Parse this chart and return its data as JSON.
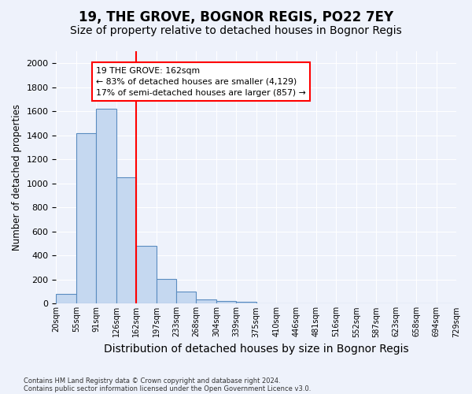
{
  "title": "19, THE GROVE, BOGNOR REGIS, PO22 7EY",
  "subtitle": "Size of property relative to detached houses in Bognor Regis",
  "xlabel": "Distribution of detached houses by size in Bognor Regis",
  "ylabel": "Number of detached properties",
  "footer_line1": "Contains HM Land Registry data © Crown copyright and database right 2024.",
  "footer_line2": "Contains public sector information licensed under the Open Government Licence v3.0.",
  "bin_labels": [
    "20sqm",
    "55sqm",
    "91sqm",
    "126sqm",
    "162sqm",
    "197sqm",
    "233sqm",
    "268sqm",
    "304sqm",
    "339sqm",
    "375sqm",
    "410sqm",
    "446sqm",
    "481sqm",
    "516sqm",
    "552sqm",
    "587sqm",
    "623sqm",
    "658sqm",
    "694sqm",
    "729sqm"
  ],
  "bar_values": [
    80,
    1420,
    1620,
    1050,
    480,
    205,
    100,
    35,
    22,
    18,
    5,
    0,
    0,
    0,
    0,
    0,
    0,
    0,
    0,
    0
  ],
  "bar_color": "#c5d8f0",
  "bar_edge_color": "#5a8cc0",
  "bar_edge_width": 0.8,
  "vline_x_index": 4,
  "vline_color": "red",
  "vline_linewidth": 1.5,
  "annotation_text": "19 THE GROVE: 162sqm\n← 83% of detached houses are smaller (4,129)\n17% of semi-detached houses are larger (857) →",
  "annotation_box_color": "white",
  "annotation_box_edge": "red",
  "ylim": [
    0,
    2100
  ],
  "yticks": [
    0,
    200,
    400,
    600,
    800,
    1000,
    1200,
    1400,
    1600,
    1800,
    2000
  ],
  "background_color": "#eef2fb",
  "grid_color": "white",
  "title_fontsize": 12,
  "subtitle_fontsize": 10,
  "ylabel_fontsize": 8.5,
  "xlabel_fontsize": 10
}
